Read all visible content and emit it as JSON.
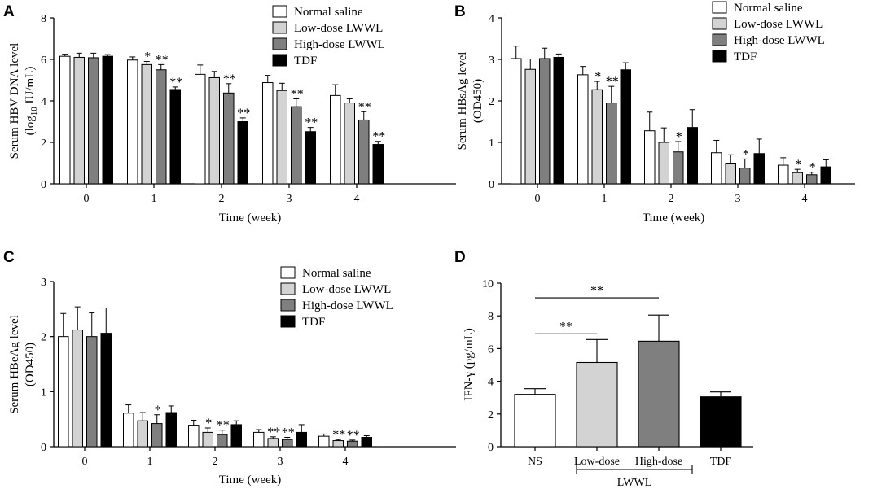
{
  "figure": {
    "series_names": [
      "Normal saline",
      "Low-dose LWWL",
      "High-dose LWWL",
      "TDF"
    ],
    "series_colors": [
      "#ffffff",
      "#d3d3d3",
      "#7f7f7f",
      "#000000"
    ]
  },
  "chart_data": [
    {
      "id": "A",
      "panel_label": "A",
      "type": "bar",
      "title": "",
      "xlabel": "Time (week)",
      "ylabel_line1": "Serum HBV DNA level",
      "ylabel_line2_prefix": "(log",
      "ylabel_line2_sub": "10",
      "ylabel_line2_suffix": " IU/mL)",
      "ylim": [
        0,
        8
      ],
      "yticks": [
        0,
        2,
        4,
        6,
        8
      ],
      "categories": [
        "0",
        "1",
        "2",
        "3",
        "4"
      ],
      "legend": "top-right",
      "series": [
        {
          "name": "Normal saline",
          "values": [
            6.15,
            5.97,
            5.28,
            4.88,
            4.26
          ],
          "errors": [
            0.1,
            0.15,
            0.45,
            0.35,
            0.52
          ],
          "sig": [
            "",
            "",
            "",
            "",
            ""
          ]
        },
        {
          "name": "Low-dose LWWL",
          "values": [
            6.1,
            5.75,
            5.12,
            4.5,
            3.9
          ],
          "errors": [
            0.2,
            0.15,
            0.3,
            0.35,
            0.2
          ],
          "sig": [
            "",
            "*",
            "",
            "",
            ""
          ]
        },
        {
          "name": "High-dose LWWL",
          "values": [
            6.08,
            5.5,
            4.38,
            3.72,
            3.08
          ],
          "errors": [
            0.22,
            0.25,
            0.45,
            0.38,
            0.4
          ],
          "sig": [
            "",
            "**",
            "**",
            "**",
            "**"
          ]
        },
        {
          "name": "TDF",
          "values": [
            6.15,
            4.55,
            3.0,
            2.52,
            1.9
          ],
          "errors": [
            0.08,
            0.12,
            0.18,
            0.2,
            0.15
          ],
          "sig": [
            "",
            "**",
            "**",
            "**",
            "**"
          ]
        }
      ]
    },
    {
      "id": "B",
      "panel_label": "B",
      "type": "bar",
      "title": "",
      "xlabel": "Time (week)",
      "ylabel_line1": "Serum HBsAg level",
      "ylabel_line2": "(OD450)",
      "ylim": [
        0,
        4
      ],
      "yticks": [
        0,
        1,
        2,
        3,
        4
      ],
      "categories": [
        "0",
        "1",
        "2",
        "3",
        "4"
      ],
      "legend": "top-right",
      "series": [
        {
          "name": "Normal saline",
          "values": [
            3.02,
            2.63,
            1.28,
            0.75,
            0.45
          ],
          "errors": [
            0.3,
            0.2,
            0.45,
            0.3,
            0.18
          ],
          "sig": [
            "",
            "",
            "",
            "",
            ""
          ]
        },
        {
          "name": "Low-dose LWWL",
          "values": [
            2.76,
            2.27,
            1.0,
            0.5,
            0.27
          ],
          "errors": [
            0.25,
            0.2,
            0.35,
            0.2,
            0.08
          ],
          "sig": [
            "",
            "*",
            "",
            "",
            "*"
          ]
        },
        {
          "name": "High-dose LWWL",
          "values": [
            3.02,
            1.95,
            0.77,
            0.38,
            0.22
          ],
          "errors": [
            0.25,
            0.4,
            0.25,
            0.22,
            0.06
          ],
          "sig": [
            "",
            "**",
            "*",
            "*",
            "*"
          ]
        },
        {
          "name": "TDF",
          "values": [
            3.05,
            2.75,
            1.36,
            0.73,
            0.41
          ],
          "errors": [
            0.08,
            0.17,
            0.43,
            0.35,
            0.17
          ],
          "sig": [
            "",
            "",
            "",
            "",
            ""
          ]
        }
      ]
    },
    {
      "id": "C",
      "panel_label": "C",
      "type": "bar",
      "title": "",
      "xlabel": "Time (week)",
      "ylabel_line1": "Serum HBeAg level",
      "ylabel_line2": "(OD450)",
      "ylim": [
        0,
        3
      ],
      "yticks": [
        0,
        1,
        2,
        3
      ],
      "categories": [
        "0",
        "1",
        "2",
        "3",
        "4"
      ],
      "legend": "top-right",
      "series": [
        {
          "name": "Normal saline",
          "values": [
            2.0,
            0.61,
            0.39,
            0.26,
            0.19
          ],
          "errors": [
            0.42,
            0.15,
            0.09,
            0.05,
            0.04
          ],
          "sig": [
            "",
            "",
            "",
            "",
            ""
          ]
        },
        {
          "name": "Low-dose LWWL",
          "values": [
            2.12,
            0.47,
            0.26,
            0.15,
            0.11
          ],
          "errors": [
            0.42,
            0.15,
            0.08,
            0.03,
            0.02
          ],
          "sig": [
            "",
            "",
            "*",
            "**",
            "**"
          ]
        },
        {
          "name": "High-dose LWWL",
          "values": [
            2.0,
            0.42,
            0.22,
            0.13,
            0.1
          ],
          "errors": [
            0.43,
            0.16,
            0.08,
            0.04,
            0.02
          ],
          "sig": [
            "",
            "*",
            "**",
            "**",
            "**"
          ]
        },
        {
          "name": "TDF",
          "values": [
            2.06,
            0.62,
            0.4,
            0.26,
            0.17
          ],
          "errors": [
            0.46,
            0.12,
            0.07,
            0.14,
            0.03
          ],
          "sig": [
            "",
            "",
            "",
            "",
            ""
          ]
        }
      ]
    },
    {
      "id": "D",
      "panel_label": "D",
      "type": "bar",
      "title": "",
      "xlabel": "",
      "ylabel": "IFN-γ (pg/mL)",
      "ylim": [
        0,
        10
      ],
      "yticks": [
        0,
        2,
        4,
        6,
        8,
        10
      ],
      "categories": [
        "NS",
        "Low-dose",
        "High-dose",
        "TDF"
      ],
      "group_label": "LWWL",
      "values": [
        3.2,
        5.15,
        6.45,
        3.05
      ],
      "errors": [
        0.35,
        1.4,
        1.6,
        0.3
      ],
      "colors": [
        "#ffffff",
        "#d3d3d3",
        "#7f7f7f",
        "#000000"
      ],
      "significance": [
        {
          "from": "NS",
          "to": "Low-dose",
          "label": "**",
          "level": 6.9
        },
        {
          "from": "NS",
          "to": "High-dose",
          "label": "**",
          "level": 9.1
        }
      ]
    }
  ]
}
